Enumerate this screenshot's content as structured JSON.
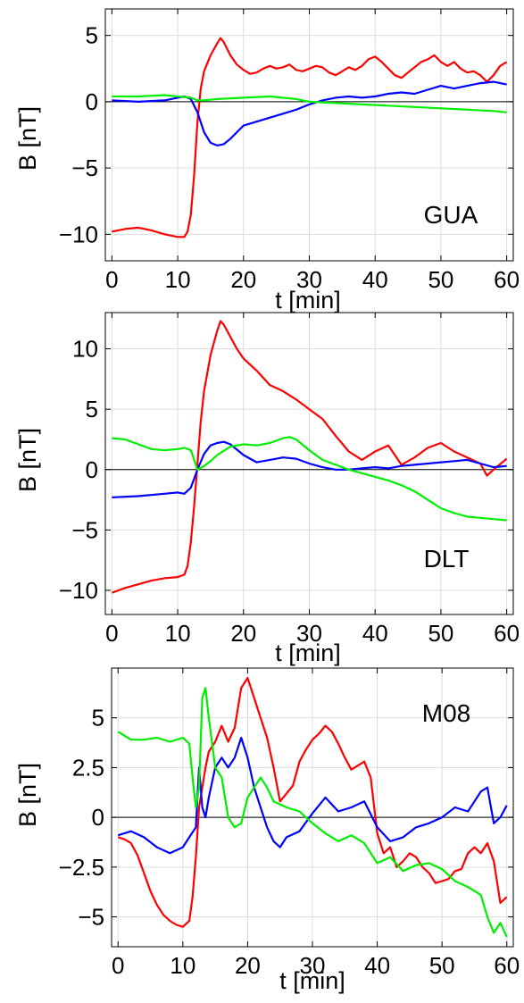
{
  "chart_data": [
    {
      "type": "line",
      "station_label": "GUA",
      "xlabel": "t  [min]",
      "ylabel": "B  [nT]",
      "xlim": [
        -1,
        61
      ],
      "ylim": [
        -12,
        7
      ],
      "xticks": [
        0,
        10,
        20,
        30,
        40,
        50,
        60
      ],
      "yticks": [
        5,
        0,
        -5,
        -10
      ],
      "ytick_labels": [
        "5",
        "0",
        "−5",
        "−10"
      ],
      "grid": true,
      "legend": "none",
      "series": [
        {
          "color": "#ff0000",
          "x": [
            0,
            2,
            4,
            6,
            8,
            10,
            11,
            11.5,
            12,
            12.5,
            13,
            13.5,
            14,
            15,
            16,
            16.5,
            17,
            18,
            19,
            20,
            21,
            22,
            23,
            24,
            25,
            26,
            27,
            28,
            29,
            30,
            31,
            32,
            33,
            34,
            35,
            36,
            37,
            38,
            39,
            40,
            41,
            42,
            43,
            44,
            45,
            46,
            47,
            48,
            49,
            50,
            51,
            52,
            53,
            54,
            55,
            56,
            57,
            58,
            59,
            60
          ],
          "y": [
            -9.8,
            -9.6,
            -9.5,
            -9.7,
            -10.0,
            -10.2,
            -10.2,
            -9.8,
            -8.5,
            -5.5,
            -1.5,
            1.0,
            2.3,
            3.5,
            4.4,
            4.8,
            4.5,
            3.5,
            2.8,
            2.4,
            2.1,
            2.2,
            2.5,
            2.7,
            2.5,
            2.6,
            2.8,
            2.4,
            2.3,
            2.5,
            2.7,
            2.6,
            2.2,
            2.0,
            2.3,
            2.6,
            2.4,
            2.7,
            3.2,
            3.4,
            3.0,
            2.5,
            2.0,
            1.8,
            2.2,
            2.6,
            3.0,
            3.2,
            3.5,
            3.0,
            2.7,
            3.0,
            2.5,
            2.2,
            2.3,
            2.0,
            1.5,
            2.0,
            2.7,
            3.0
          ]
        },
        {
          "color": "#0000ff",
          "x": [
            0,
            4,
            8,
            10,
            11,
            12,
            13,
            14,
            15,
            16,
            17,
            18,
            19,
            20,
            22,
            24,
            26,
            28,
            30,
            32,
            34,
            36,
            38,
            40,
            42,
            44,
            46,
            48,
            50,
            52,
            54,
            56,
            58,
            60
          ],
          "y": [
            0.1,
            0.0,
            0.1,
            0.3,
            0.4,
            0.2,
            -0.8,
            -2.3,
            -3.1,
            -3.3,
            -3.2,
            -2.8,
            -2.3,
            -1.8,
            -1.5,
            -1.2,
            -0.9,
            -0.6,
            -0.2,
            0.1,
            0.3,
            0.4,
            0.3,
            0.4,
            0.6,
            0.7,
            0.6,
            0.9,
            1.2,
            1.0,
            1.2,
            1.4,
            1.5,
            1.3
          ]
        },
        {
          "color": "#00ee00",
          "x": [
            0,
            4,
            8,
            10,
            12,
            13,
            14,
            16,
            20,
            24,
            26,
            28,
            30,
            34,
            38,
            42,
            46,
            50,
            54,
            58,
            60
          ],
          "y": [
            0.4,
            0.4,
            0.5,
            0.4,
            0.3,
            0.1,
            0.1,
            0.2,
            0.3,
            0.4,
            0.3,
            0.2,
            0.0,
            -0.1,
            -0.2,
            -0.3,
            -0.4,
            -0.5,
            -0.6,
            -0.7,
            -0.8
          ]
        }
      ]
    },
    {
      "type": "line",
      "station_label": "DLT",
      "xlabel": "t  [min]",
      "ylabel": "B  [nT]",
      "xlim": [
        -1,
        61
      ],
      "ylim": [
        -12,
        13
      ],
      "xticks": [
        0,
        10,
        20,
        30,
        40,
        50,
        60
      ],
      "yticks": [
        10,
        5,
        0,
        -5,
        -10
      ],
      "ytick_labels": [
        "10",
        "5",
        "0",
        "−5",
        "−10"
      ],
      "grid": true,
      "legend": "none",
      "series": [
        {
          "color": "#ff0000",
          "x": [
            0,
            2,
            4,
            6,
            8,
            10,
            11,
            11.5,
            12,
            12.5,
            13,
            13.5,
            14,
            15,
            16,
            16.5,
            17,
            18,
            19,
            20,
            22,
            24,
            26,
            28,
            30,
            32,
            34,
            36,
            38,
            40,
            42,
            44,
            46,
            48,
            50,
            52,
            54,
            56,
            57,
            58,
            60
          ],
          "y": [
            -10.2,
            -9.8,
            -9.5,
            -9.2,
            -9.0,
            -8.9,
            -8.7,
            -8.0,
            -6.0,
            -3.0,
            0.5,
            4.0,
            6.5,
            9.5,
            11.5,
            12.3,
            12.0,
            11.0,
            10.0,
            9.2,
            8.2,
            7.0,
            6.5,
            5.8,
            5.0,
            4.2,
            2.8,
            1.5,
            0.8,
            1.5,
            2.0,
            0.4,
            1.0,
            1.8,
            2.2,
            1.5,
            1.0,
            0.5,
            -0.5,
            0.0,
            0.9
          ]
        },
        {
          "color": "#0000ff",
          "x": [
            0,
            4,
            8,
            10,
            11,
            12,
            13,
            14,
            15,
            16,
            17,
            18,
            20,
            22,
            24,
            26,
            28,
            30,
            32,
            34,
            36,
            38,
            40,
            42,
            44,
            46,
            48,
            50,
            52,
            54,
            56,
            58,
            60
          ],
          "y": [
            -2.3,
            -2.2,
            -2.0,
            -1.9,
            -2.0,
            -1.5,
            0.0,
            1.3,
            2.0,
            2.2,
            2.3,
            2.1,
            1.2,
            0.6,
            0.8,
            1.0,
            0.9,
            0.5,
            0.2,
            0.0,
            0.0,
            0.1,
            0.2,
            0.1,
            0.3,
            0.4,
            0.5,
            0.6,
            0.7,
            0.8,
            0.5,
            0.2,
            0.3
          ]
        },
        {
          "color": "#00ee00",
          "x": [
            0,
            2,
            4,
            6,
            8,
            10,
            11,
            12,
            13,
            14,
            15,
            16,
            18,
            20,
            22,
            24,
            26,
            27,
            28,
            30,
            32,
            34,
            36,
            38,
            40,
            42,
            44,
            46,
            48,
            50,
            52,
            54,
            56,
            58,
            60
          ],
          "y": [
            2.6,
            2.5,
            2.1,
            1.7,
            1.6,
            1.7,
            1.8,
            1.6,
            0.0,
            0.3,
            0.7,
            1.2,
            1.9,
            2.1,
            2.0,
            2.2,
            2.6,
            2.7,
            2.5,
            1.6,
            0.8,
            0.4,
            0.0,
            -0.3,
            -0.6,
            -0.9,
            -1.3,
            -1.8,
            -2.5,
            -3.2,
            -3.6,
            -3.9,
            -4.0,
            -4.1,
            -4.2
          ]
        }
      ]
    },
    {
      "type": "line",
      "station_label": "M08",
      "xlabel": "t  [min]",
      "ylabel": "B  [nT]",
      "xlim": [
        -1,
        61
      ],
      "ylim": [
        -6.5,
        7.5
      ],
      "xticks": [
        0,
        10,
        20,
        30,
        40,
        50,
        60
      ],
      "yticks": [
        5,
        2.5,
        0,
        -2.5,
        -5
      ],
      "ytick_labels": [
        "5",
        "2.5",
        "0",
        "−2.5",
        "−5"
      ],
      "grid": true,
      "legend": "none",
      "series": [
        {
          "color": "#ff0000",
          "x": [
            0,
            1,
            2,
            3,
            4,
            5,
            6,
            7,
            8,
            9,
            10,
            11,
            11.5,
            12,
            12.5,
            13,
            13.5,
            14,
            15,
            16,
            17,
            18,
            19,
            20,
            21,
            22,
            23,
            24,
            25,
            26,
            27,
            28,
            29,
            30,
            31,
            32,
            33,
            34,
            35,
            36,
            37,
            38,
            39,
            40,
            41,
            42,
            43,
            44,
            45,
            46,
            47,
            48,
            49,
            50,
            51,
            52,
            53,
            54,
            55,
            56,
            57,
            58,
            59,
            60
          ],
          "y": [
            -1.0,
            -1.1,
            -1.3,
            -1.9,
            -2.8,
            -3.7,
            -4.4,
            -4.9,
            -5.2,
            -5.4,
            -5.5,
            -5.2,
            -4.0,
            -2.0,
            0.5,
            1.5,
            2.5,
            3.3,
            3.8,
            4.6,
            3.8,
            4.5,
            6.5,
            7.0,
            6.0,
            5.0,
            4.0,
            2.5,
            0.8,
            1.2,
            1.6,
            2.8,
            3.4,
            3.9,
            4.2,
            4.6,
            4.3,
            3.7,
            3.0,
            2.4,
            2.6,
            2.8,
            2.0,
            -0.8,
            -1.8,
            -1.5,
            -2.5,
            -2.2,
            -1.8,
            -2.0,
            -2.5,
            -2.8,
            -3.3,
            -3.2,
            -3.1,
            -2.7,
            -2.6,
            -1.8,
            -1.5,
            -1.8,
            -1.3,
            -2.2,
            -4.3,
            -4.0
          ]
        },
        {
          "color": "#0000ff",
          "x": [
            0,
            2,
            4,
            6,
            8,
            10,
            11,
            12,
            12.5,
            13,
            13.5,
            14,
            15,
            16,
            17,
            18,
            19,
            20,
            21,
            22,
            23,
            24,
            25,
            26,
            28,
            30,
            32,
            34,
            36,
            38,
            40,
            42,
            44,
            46,
            48,
            50,
            52,
            54,
            55,
            56,
            57,
            58,
            59,
            60
          ],
          "y": [
            -0.9,
            -0.7,
            -1.0,
            -1.5,
            -1.8,
            -1.5,
            -1.0,
            -0.5,
            2.5,
            0.5,
            0.0,
            1.0,
            2.5,
            3.0,
            2.5,
            3.0,
            4.0,
            3.0,
            1.5,
            0.5,
            -0.5,
            -1.2,
            -1.5,
            -1.0,
            -0.7,
            0.2,
            1.0,
            0.3,
            0.5,
            0.8,
            -0.5,
            -1.2,
            -1.0,
            -0.5,
            -0.3,
            0.0,
            0.5,
            0.3,
            0.8,
            1.3,
            1.5,
            -0.3,
            0.0,
            0.6
          ]
        },
        {
          "color": "#00ee00",
          "x": [
            0,
            2,
            4,
            6,
            8,
            10,
            11,
            11.5,
            12,
            12.5,
            13,
            13.5,
            14,
            15,
            16,
            17,
            18,
            19,
            20,
            21,
            22,
            23,
            24,
            26,
            28,
            30,
            32,
            34,
            36,
            38,
            40,
            42,
            44,
            46,
            48,
            50,
            52,
            54,
            56,
            57,
            58,
            59,
            60
          ],
          "y": [
            4.3,
            3.9,
            3.9,
            4.0,
            3.8,
            4.0,
            3.7,
            2.0,
            0.5,
            1.5,
            6.0,
            6.5,
            5.0,
            2.5,
            2.0,
            0.0,
            -0.5,
            -0.3,
            1.0,
            1.5,
            2.0,
            1.5,
            0.8,
            0.5,
            0.3,
            -0.3,
            -0.8,
            -1.2,
            -0.9,
            -1.3,
            -2.3,
            -2.0,
            -2.7,
            -2.4,
            -2.3,
            -2.6,
            -3.2,
            -3.5,
            -3.9,
            -5.0,
            -5.8,
            -5.3,
            -6.0
          ]
        }
      ]
    }
  ]
}
